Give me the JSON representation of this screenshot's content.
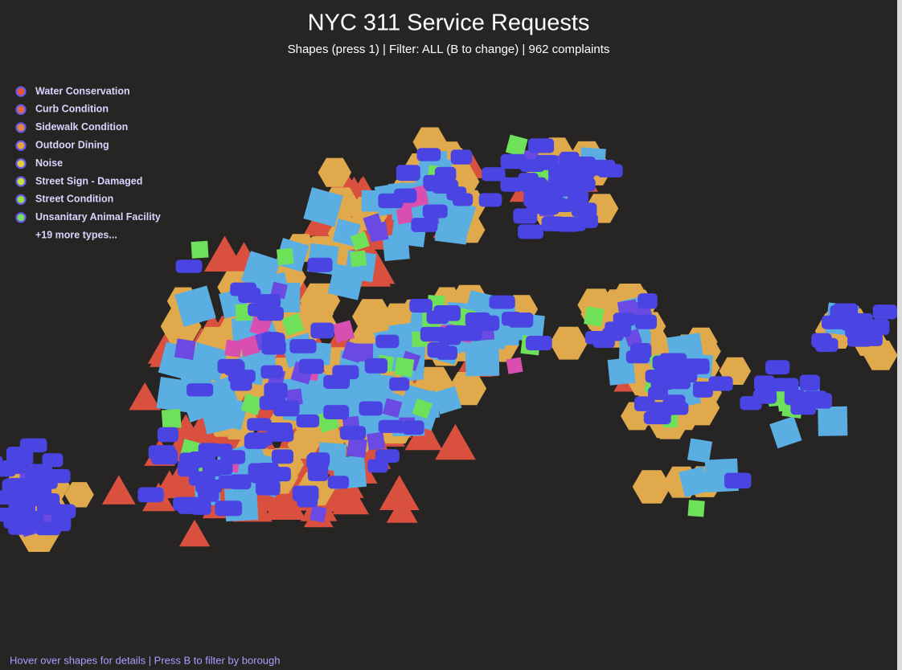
{
  "header": {
    "title": "NYC 311 Service Requests",
    "subtitle": "Shapes (press 1) | Filter: ALL (B to change) | 962 complaints"
  },
  "legend": {
    "items": [
      {
        "label": "Water Conservation",
        "color": "#e2553f"
      },
      {
        "label": "Curb Condition",
        "color": "#e26a3f"
      },
      {
        "label": "Sidewalk Condition",
        "color": "#e2873f"
      },
      {
        "label": "Outdoor Dining",
        "color": "#e2a83f"
      },
      {
        "label": "Noise",
        "color": "#e2cf3f"
      },
      {
        "label": "Street Sign - Damaged",
        "color": "#c2e23f"
      },
      {
        "label": "Street Condition",
        "color": "#94e23f"
      },
      {
        "label": "Unsanitary Animal Facility",
        "color": "#74e25a"
      }
    ],
    "more": "+19 more types..."
  },
  "footer": "Hover over shapes for details | Press B to filter by borough"
}
